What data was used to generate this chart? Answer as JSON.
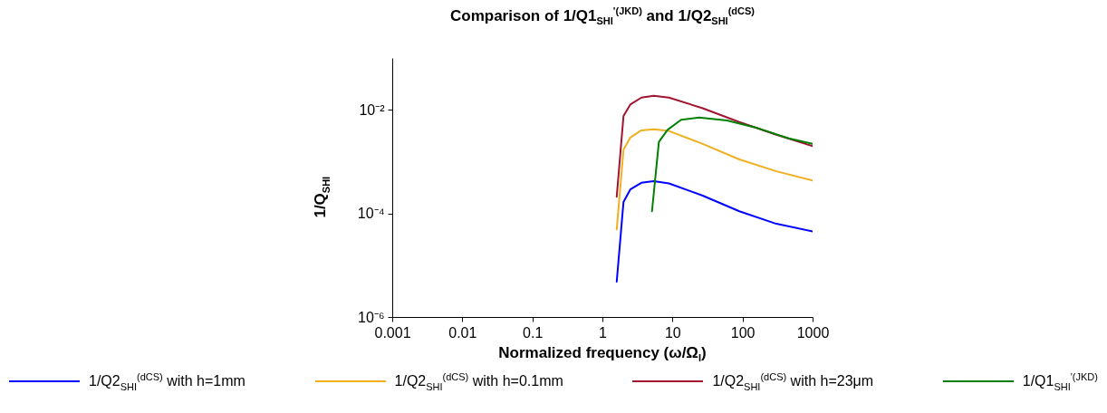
{
  "chart_data": {
    "type": "line",
    "title": "Comparison of 1/Q1$_{SHI}$$^{'(JKD)}$ and 1/Q2$_{SHI}$$^{(dCS)}$",
    "xlabel": "Normalized frequency (ω/Ω$_{I}$)",
    "ylabel": "1/Q$_{SHI}$",
    "log": "xy",
    "xlim": [
      0.001,
      1000
    ],
    "xticks": [
      0.001,
      0.01,
      0.1,
      1,
      10,
      100,
      1000
    ],
    "ylim": [
      1e-06,
      0.1
    ],
    "yticks": [
      {
        "value": 1e-06,
        "label": "10⁻⁶"
      },
      {
        "value": 0.0001,
        "label": "10⁻⁴"
      },
      {
        "value": 0.01,
        "label": "10⁻²"
      }
    ],
    "grid": false,
    "legend": "bottom",
    "line_style": "solid",
    "marker": "none",
    "series": [
      {
        "name": "1/Q2$_{SHI}$$^{(dCS)}$ with h=1mm",
        "color": "#0000ff",
        "x": [
          1.6,
          2.0,
          2.5,
          3.6,
          5.4,
          8.9,
          27,
          90,
          304,
          1000
        ],
        "values": [
          4.8e-06,
          0.000166,
          0.00029,
          0.00039,
          0.00042,
          0.00038,
          0.00022,
          0.00011,
          6.3e-05,
          4.5e-05
        ]
      },
      {
        "name": "1/Q2$_{SHI}$$^{(dCS)}$ with h=0.1mm",
        "color": "#f0b020",
        "x": [
          1.6,
          2.0,
          2.5,
          3.6,
          5.4,
          8.9,
          27,
          90,
          304,
          1000
        ],
        "values": [
          4.9e-05,
          0.0017,
          0.0029,
          0.004,
          0.0042,
          0.0039,
          0.0022,
          0.0011,
          0.00065,
          0.00043
        ]
      },
      {
        "name": "1/Q2$_{SHI}$$^{(dCS)}$ with h=23μm",
        "color": "#a2142f",
        "x": [
          1.6,
          2.0,
          2.5,
          3.6,
          5.4,
          8.9,
          27,
          90,
          304,
          1000
        ],
        "values": [
          0.00021,
          0.0076,
          0.0126,
          0.0172,
          0.0187,
          0.0172,
          0.0107,
          0.0058,
          0.0033,
          0.002
        ]
      },
      {
        "name": "1/Q1$_{SHI}$$^{'(JKD)}$",
        "color": "#008000",
        "x": [
          5.1,
          6.4,
          8.5,
          13.3,
          24,
          60,
          166,
          455,
          1000
        ],
        "values": [
          0.00011,
          0.0024,
          0.0041,
          0.0064,
          0.0071,
          0.0062,
          0.0044,
          0.0028,
          0.0022
        ]
      }
    ]
  }
}
